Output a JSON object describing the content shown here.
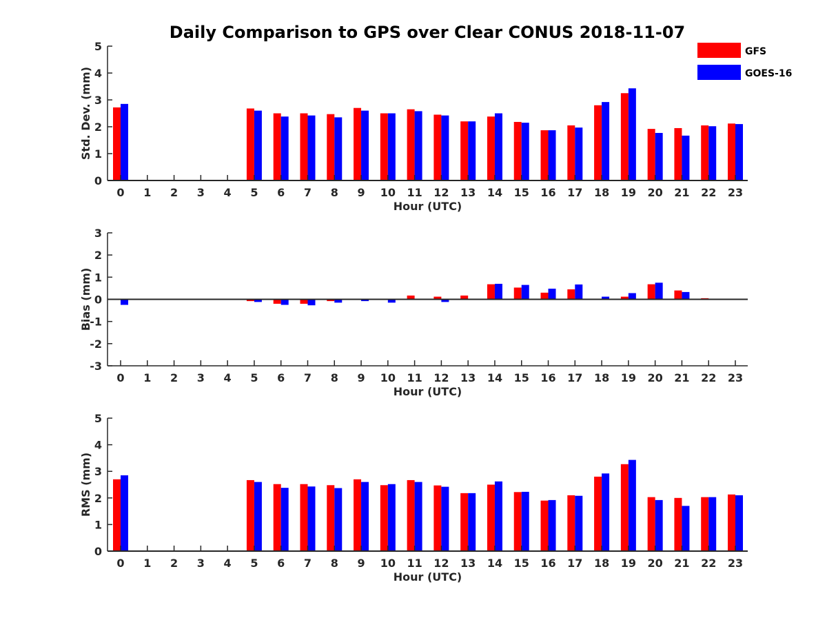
{
  "chart_data": {
    "type": "bar",
    "title": "Daily Comparison to GPS over Clear CONUS 2018-11-07",
    "categories": [
      "0",
      "1",
      "2",
      "3",
      "4",
      "5",
      "6",
      "7",
      "8",
      "9",
      "10",
      "11",
      "12",
      "13",
      "14",
      "15",
      "16",
      "17",
      "18",
      "19",
      "20",
      "21",
      "22",
      "23"
    ],
    "legend": {
      "placement": "top-right",
      "entries": [
        {
          "name": "GFS",
          "color": "#ff0000"
        },
        {
          "name": "GOES-16",
          "color": "#0000ff"
        }
      ]
    },
    "panels": [
      {
        "id": "std",
        "ylabel": "Std. Dev. (mm)",
        "xlabel": "Hour (UTC)",
        "ylim": [
          0,
          5
        ],
        "yticks": [
          "0",
          "1",
          "2",
          "3",
          "4",
          "5"
        ],
        "series": [
          {
            "name": "GFS",
            "values": [
              2.72,
              null,
              null,
              null,
              null,
              2.68,
              2.5,
              2.5,
              2.47,
              2.7,
              2.5,
              2.65,
              2.45,
              2.2,
              2.38,
              2.18,
              1.87,
              2.05,
              2.8,
              3.25,
              1.92,
              1.95,
              2.05,
              2.12
            ]
          },
          {
            "name": "GOES-16",
            "values": [
              2.85,
              null,
              null,
              null,
              null,
              2.6,
              2.38,
              2.42,
              2.35,
              2.6,
              2.5,
              2.58,
              2.42,
              2.2,
              2.5,
              2.15,
              1.87,
              1.97,
              2.92,
              3.43,
              1.77,
              1.67,
              2.02,
              2.1
            ]
          }
        ]
      },
      {
        "id": "bias",
        "ylabel": "Bias (mm)",
        "xlabel": "Hour (UTC)",
        "ylim": [
          -3,
          3
        ],
        "yticks": [
          "-3",
          "-2",
          "-1",
          "0",
          "1",
          "2",
          "3"
        ],
        "series": [
          {
            "name": "GFS",
            "values": [
              0.0,
              null,
              null,
              null,
              null,
              -0.08,
              -0.2,
              -0.2,
              -0.08,
              -0.03,
              -0.03,
              0.17,
              0.12,
              0.17,
              0.68,
              0.53,
              0.3,
              0.45,
              -0.03,
              0.12,
              0.68,
              0.4,
              0.05,
              0.02
            ]
          },
          {
            "name": "GOES-16",
            "values": [
              -0.25,
              null,
              null,
              null,
              null,
              -0.12,
              -0.25,
              -0.27,
              -0.15,
              -0.08,
              -0.15,
              0.0,
              -0.12,
              0.03,
              0.7,
              0.65,
              0.48,
              0.67,
              0.12,
              0.28,
              0.75,
              0.33,
              0.0,
              0.0
            ]
          }
        ]
      },
      {
        "id": "rms",
        "ylabel": "RMS (mm)",
        "xlabel": "Hour (UTC)",
        "ylim": [
          0,
          5
        ],
        "yticks": [
          "0",
          "1",
          "2",
          "3",
          "4",
          "5"
        ],
        "series": [
          {
            "name": "GFS",
            "values": [
              2.7,
              null,
              null,
              null,
              null,
              2.67,
              2.52,
              2.52,
              2.48,
              2.7,
              2.48,
              2.67,
              2.47,
              2.18,
              2.5,
              2.22,
              1.9,
              2.1,
              2.8,
              3.27,
              2.03,
              2.0,
              2.03,
              2.13
            ]
          },
          {
            "name": "GOES-16",
            "values": [
              2.85,
              null,
              null,
              null,
              null,
              2.6,
              2.38,
              2.43,
              2.37,
              2.6,
              2.52,
              2.6,
              2.42,
              2.18,
              2.62,
              2.23,
              1.92,
              2.08,
              2.92,
              3.43,
              1.92,
              1.7,
              2.03,
              2.1
            ]
          }
        ]
      }
    ]
  }
}
